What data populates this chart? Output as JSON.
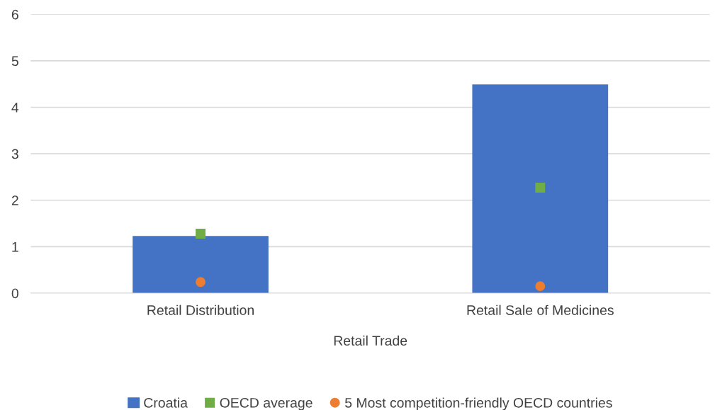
{
  "chart_data": {
    "type": "bar",
    "categories": [
      "Retail Distribution",
      "Retail Sale of Medicines"
    ],
    "xlabel": "Retail Trade",
    "series": [
      {
        "name": "Croatia",
        "color": "#4472c4",
        "values": [
          1.23,
          4.49
        ]
      },
      {
        "name": "OECD average",
        "color": "#70ad47",
        "type": "scatter",
        "marker": "square",
        "values": [
          1.28,
          2.27
        ]
      },
      {
        "name": "5 Most competition-friendly OECD countries",
        "color": "#ed7d31",
        "type": "scatter",
        "marker": "circle",
        "values": [
          0.24,
          0.15
        ]
      }
    ],
    "ylim": [
      0,
      6
    ],
    "yticks": [
      0,
      1,
      2,
      3,
      4,
      5,
      6
    ],
    "grid": "y",
    "legend": "bottom"
  }
}
